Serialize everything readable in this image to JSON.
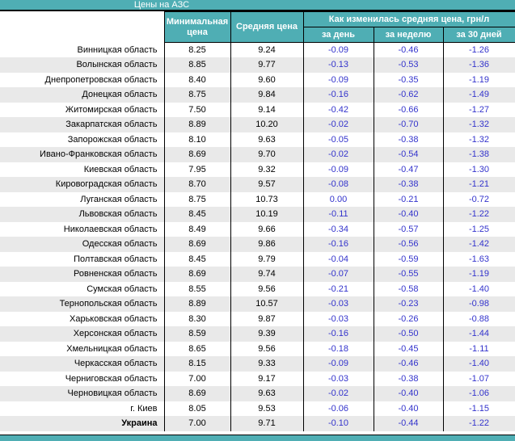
{
  "title": "Цены на АЗС",
  "columns": {
    "min": "Минимальная цена",
    "avg": "Средняя цена",
    "change_group": "Как изменилась средняя цена, грн/л",
    "day": "за день",
    "week": "за неделю",
    "month": "за 30 дней"
  },
  "colors": {
    "accent_teal": "#4FAEB4",
    "stripe_gray": "#E9E9E9",
    "change_blue": "#3333CC",
    "border_black": "#000000",
    "header_text": "#FFFFFF"
  },
  "rows": [
    {
      "region": "Винницкая область",
      "min": "8.25",
      "avg": "9.24",
      "day": "-0.09",
      "week": "-0.46",
      "month": "-1.26",
      "bold": false
    },
    {
      "region": "Волынская область",
      "min": "8.85",
      "avg": "9.77",
      "day": "-0.13",
      "week": "-0.53",
      "month": "-1.36",
      "bold": false
    },
    {
      "region": "Днепропетровская область",
      "min": "8.40",
      "avg": "9.60",
      "day": "-0.09",
      "week": "-0.35",
      "month": "-1.19",
      "bold": false
    },
    {
      "region": "Донецкая область",
      "min": "8.75",
      "avg": "9.84",
      "day": "-0.16",
      "week": "-0.62",
      "month": "-1.49",
      "bold": false
    },
    {
      "region": "Житомирская область",
      "min": "7.50",
      "avg": "9.14",
      "day": "-0.42",
      "week": "-0.66",
      "month": "-1.27",
      "bold": false
    },
    {
      "region": "Закарпатская область",
      "min": "8.89",
      "avg": "10.20",
      "day": "-0.02",
      "week": "-0.70",
      "month": "-1.32",
      "bold": false
    },
    {
      "region": "Запорожская область",
      "min": "8.10",
      "avg": "9.63",
      "day": "-0.05",
      "week": "-0.38",
      "month": "-1.32",
      "bold": false
    },
    {
      "region": "Ивано-Франковская область",
      "min": "8.69",
      "avg": "9.70",
      "day": "-0.02",
      "week": "-0.54",
      "month": "-1.38",
      "bold": false
    },
    {
      "region": "Киевская область",
      "min": "7.95",
      "avg": "9.32",
      "day": "-0.09",
      "week": "-0.47",
      "month": "-1.30",
      "bold": false
    },
    {
      "region": "Кировоградская область",
      "min": "8.70",
      "avg": "9.57",
      "day": "-0.08",
      "week": "-0.38",
      "month": "-1.21",
      "bold": false
    },
    {
      "region": "Луганская область",
      "min": "8.75",
      "avg": "10.73",
      "day": "0.00",
      "week": "-0.21",
      "month": "-0.72",
      "bold": false
    },
    {
      "region": "Львовская область",
      "min": "8.45",
      "avg": "10.19",
      "day": "-0.11",
      "week": "-0.40",
      "month": "-1.22",
      "bold": false
    },
    {
      "region": "Николаевская область",
      "min": "8.49",
      "avg": "9.66",
      "day": "-0.34",
      "week": "-0.57",
      "month": "-1.25",
      "bold": false
    },
    {
      "region": "Одесская область",
      "min": "8.69",
      "avg": "9.86",
      "day": "-0.16",
      "week": "-0.56",
      "month": "-1.42",
      "bold": false
    },
    {
      "region": "Полтавская область",
      "min": "8.45",
      "avg": "9.79",
      "day": "-0.04",
      "week": "-0.59",
      "month": "-1.63",
      "bold": false
    },
    {
      "region": "Ровненская область",
      "min": "8.69",
      "avg": "9.74",
      "day": "-0.07",
      "week": "-0.55",
      "month": "-1.19",
      "bold": false
    },
    {
      "region": "Сумская область",
      "min": "8.55",
      "avg": "9.56",
      "day": "-0.21",
      "week": "-0.58",
      "month": "-1.40",
      "bold": false
    },
    {
      "region": "Тернопольская область",
      "min": "8.89",
      "avg": "10.57",
      "day": "-0.03",
      "week": "-0.23",
      "month": "-0.98",
      "bold": false
    },
    {
      "region": "Харьковская область",
      "min": "8.30",
      "avg": "9.87",
      "day": "-0.03",
      "week": "-0.26",
      "month": "-0.88",
      "bold": false
    },
    {
      "region": "Херсонская область",
      "min": "8.59",
      "avg": "9.39",
      "day": "-0.16",
      "week": "-0.50",
      "month": "-1.44",
      "bold": false
    },
    {
      "region": "Хмельницкая область",
      "min": "8.65",
      "avg": "9.56",
      "day": "-0.18",
      "week": "-0.45",
      "month": "-1.11",
      "bold": false
    },
    {
      "region": "Черкасская область",
      "min": "8.15",
      "avg": "9.33",
      "day": "-0.09",
      "week": "-0.46",
      "month": "-1.40",
      "bold": false
    },
    {
      "region": "Черниговская область",
      "min": "7.00",
      "avg": "9.17",
      "day": "-0.03",
      "week": "-0.38",
      "month": "-1.07",
      "bold": false
    },
    {
      "region": "Черновицкая область",
      "min": "8.69",
      "avg": "9.63",
      "day": "-0.02",
      "week": "-0.40",
      "month": "-1.06",
      "bold": false
    },
    {
      "region": "г. Киев",
      "min": "8.05",
      "avg": "9.53",
      "day": "-0.06",
      "week": "-0.40",
      "month": "-1.15",
      "bold": false
    },
    {
      "region": "Украина",
      "min": "7.00",
      "avg": "9.71",
      "day": "-0.10",
      "week": "-0.44",
      "month": "-1.22",
      "bold": true
    }
  ]
}
